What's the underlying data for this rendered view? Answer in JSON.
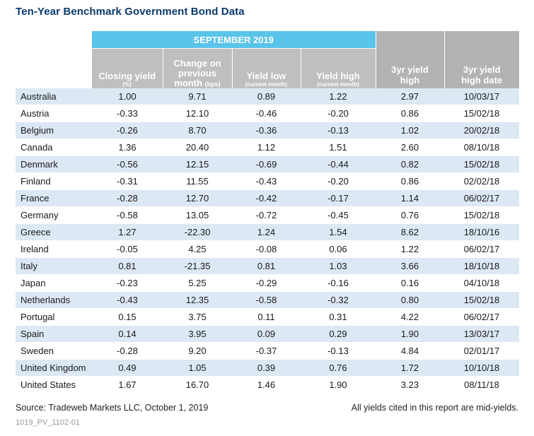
{
  "title": "Ten-Year Benchmark Government Bond Data",
  "band_label": "SEPTEMBER 2019",
  "headers": {
    "closing_yield": "Closing yield",
    "closing_yield_sub": "(%)",
    "change_main": "Change on previous month",
    "change_sub": "(bps)",
    "yield_low": "Yield low",
    "yield_low_sub": "(current month)",
    "yield_high": "Yield high",
    "yield_high_sub": "(current month)",
    "three_yr_high": "3yr yield high",
    "three_yr_high_date": "3yr yield high date"
  },
  "rows": [
    {
      "country": "Australia",
      "closing": "1.00",
      "change": "9.71",
      "low": "0.89",
      "high": "1.22",
      "high3": "2.97",
      "date3": "10/03/17"
    },
    {
      "country": "Austria",
      "closing": "-0.33",
      "change": "12.10",
      "low": "-0.46",
      "high": "-0.20",
      "high3": "0.86",
      "date3": "15/02/18"
    },
    {
      "country": "Belgium",
      "closing": "-0.26",
      "change": "8.70",
      "low": "-0.36",
      "high": "-0.13",
      "high3": "1.02",
      "date3": "20/02/18"
    },
    {
      "country": "Canada",
      "closing": "1.36",
      "change": "20.40",
      "low": "1.12",
      "high": "1.51",
      "high3": "2.60",
      "date3": "08/10/18"
    },
    {
      "country": "Denmark",
      "closing": "-0.56",
      "change": "12.15",
      "low": "-0.69",
      "high": "-0.44",
      "high3": "0.82",
      "date3": "15/02/18"
    },
    {
      "country": "Finland",
      "closing": "-0.31",
      "change": "11.55",
      "low": "-0.43",
      "high": "-0.20",
      "high3": "0.86",
      "date3": "02/02/18"
    },
    {
      "country": "France",
      "closing": "-0.28",
      "change": "12.70",
      "low": "-0.42",
      "high": "-0.17",
      "high3": "1.14",
      "date3": "06/02/17"
    },
    {
      "country": "Germany",
      "closing": "-0.58",
      "change": "13.05",
      "low": "-0.72",
      "high": "-0.45",
      "high3": "0.76",
      "date3": "15/02/18"
    },
    {
      "country": "Greece",
      "closing": "1.27",
      "change": "-22.30",
      "low": "1.24",
      "high": "1.54",
      "high3": "8.62",
      "date3": "18/10/16"
    },
    {
      "country": "Ireland",
      "closing": "-0.05",
      "change": "4.25",
      "low": "-0.08",
      "high": "0.06",
      "high3": "1.22",
      "date3": "06/02/17"
    },
    {
      "country": "Italy",
      "closing": "0.81",
      "change": "-21.35",
      "low": "0.81",
      "high": "1.03",
      "high3": "3.66",
      "date3": "18/10/18"
    },
    {
      "country": "Japan",
      "closing": "-0.23",
      "change": "5.25",
      "low": "-0.29",
      "high": "-0.16",
      "high3": "0.16",
      "date3": "04/10/18"
    },
    {
      "country": "Netherlands",
      "closing": "-0.43",
      "change": "12.35",
      "low": "-0.58",
      "high": "-0.32",
      "high3": "0.80",
      "date3": "15/02/18"
    },
    {
      "country": "Portugal",
      "closing": "0.15",
      "change": "3.75",
      "low": "0.11",
      "high": "0.31",
      "high3": "4.22",
      "date3": "06/02/17"
    },
    {
      "country": "Spain",
      "closing": "0.14",
      "change": "3.95",
      "low": "0.09",
      "high": "0.29",
      "high3": "1.90",
      "date3": "13/03/17"
    },
    {
      "country": "Sweden",
      "closing": "-0.28",
      "change": "9.20",
      "low": "-0.37",
      "high": "-0.13",
      "high3": "4.84",
      "date3": "02/01/17"
    },
    {
      "country": "United Kingdom",
      "closing": "0.49",
      "change": "1.05",
      "low": "0.39",
      "high": "0.76",
      "high3": "1.72",
      "date3": "10/10/18"
    },
    {
      "country": "United States",
      "closing": "1.67",
      "change": "16.70",
      "low": "1.46",
      "high": "1.90",
      "high3": "3.23",
      "date3": "08/11/18"
    }
  ],
  "footer": {
    "source": "Source: Tradeweb Markets LLC, October 1, 2019",
    "note": "All yields cited in this report are mid-yields.",
    "code": "1019_PV_1102-01"
  },
  "colors": {
    "title": "#0b3a6e",
    "band": "#5bc4ea",
    "header_grey": "#b3b3b3",
    "row_shade": "#dce8f4"
  }
}
